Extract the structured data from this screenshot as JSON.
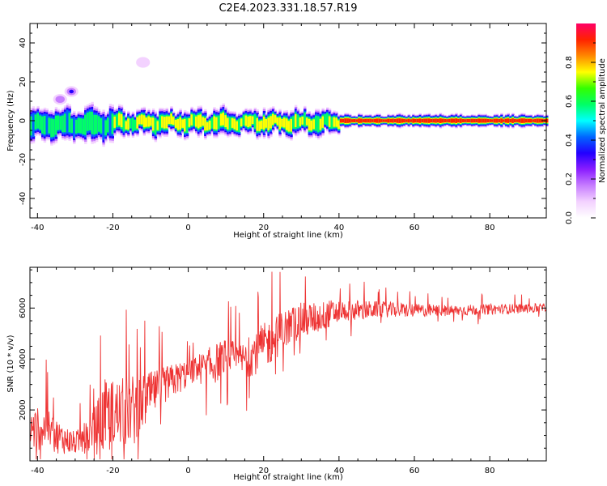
{
  "title": "C2E4.2023.331.18.57.R19",
  "chart_data": [
    {
      "type": "heatmap",
      "xlabel": "Height of straight line (km)",
      "ylabel": "Frequency (Hz)",
      "xlim": [
        -42,
        95
      ],
      "ylim": [
        -50,
        50
      ],
      "xticks": [
        -40,
        -20,
        0,
        20,
        40,
        60,
        80
      ],
      "yticks": [
        -40,
        -20,
        0,
        20,
        40
      ],
      "colorbar": {
        "label": "Normalized spectral amplitude",
        "range": [
          0,
          1
        ],
        "ticks": [
          0.0,
          0.2,
          0.4,
          0.6,
          0.8
        ],
        "colors": [
          "#ffffff",
          "#f3d2ff",
          "#c77dff",
          "#8a1dff",
          "#2200ff",
          "#0066ff",
          "#00ffff",
          "#00ff66",
          "#33ff00",
          "#ffff00",
          "#ff8800",
          "#ff2200",
          "#ff0066"
        ]
      },
      "features": [
        {
          "kind": "band",
          "x_range": [
            -42,
            -20
          ],
          "center_hz": -2,
          "halfwidth_hz": 4,
          "peak": 0.55
        },
        {
          "kind": "band",
          "x_range": [
            -20,
            40
          ],
          "center_hz": -1,
          "halfwidth_hz": 3,
          "peak": 0.7
        },
        {
          "kind": "band",
          "x_range": [
            40,
            95
          ],
          "center_hz": 0,
          "halfwidth_hz": 1.5,
          "peak": 0.95
        },
        {
          "kind": "blob",
          "x": -31,
          "y": 15,
          "peak": 0.3
        },
        {
          "kind": "blob",
          "x": -34,
          "y": 11,
          "peak": 0.2
        },
        {
          "kind": "blob",
          "x": -12,
          "y": 30,
          "peak": 0.05
        }
      ]
    },
    {
      "type": "line",
      "xlabel": "Height of straight line (km)",
      "ylabel": "SNR (10 * v/v)",
      "xlim": [
        -42,
        95
      ],
      "ylim": [
        0,
        7600
      ],
      "xticks": [
        -40,
        -20,
        0,
        20,
        40,
        60,
        80
      ],
      "yticks": [
        2000,
        4000,
        6000
      ],
      "series": [
        {
          "color": "#ee3333",
          "envelope_x": [
            -42,
            -38,
            -34,
            -30,
            -26,
            -22,
            -18,
            -14,
            -10,
            -6,
            -2,
            2,
            6,
            10,
            14,
            18,
            22,
            26,
            30,
            34,
            38,
            42,
            46,
            50,
            60,
            70,
            80,
            95
          ],
          "envelope_mean": [
            1200,
            1300,
            900,
            700,
            1000,
            1700,
            1900,
            2000,
            2600,
            3000,
            3300,
            3600,
            3700,
            4100,
            3900,
            4300,
            4700,
            5200,
            5500,
            5600,
            5800,
            5900,
            5900,
            5950,
            5900,
            5900,
            5950,
            6000
          ],
          "envelope_noise": [
            900,
            1000,
            700,
            500,
            800,
            1700,
            1500,
            1600,
            1000,
            800,
            700,
            600,
            900,
            800,
            800,
            1000,
            1000,
            900,
            800,
            700,
            600,
            500,
            450,
            350,
            300,
            250,
            230,
            200
          ]
        }
      ]
    }
  ]
}
